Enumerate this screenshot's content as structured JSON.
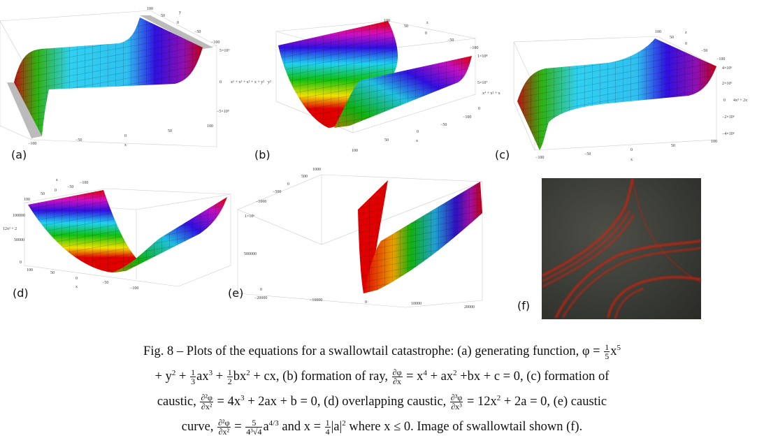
{
  "panels": {
    "a": {
      "label": "(a)",
      "zlabel": "x⁵ + x³ + x² + x + y²",
      "y_axis_label": "y",
      "x_axis_label": "x",
      "y_ticks": [
        "100",
        "50",
        "0",
        "−50",
        "−100"
      ],
      "z_ticks": [
        "5×10⁹",
        "0",
        "−5×10⁹"
      ],
      "x_ticks": [
        "−100",
        "−50",
        "0",
        "50",
        "100"
      ]
    },
    "b": {
      "label": "(b)",
      "zlabel": "x⁴ + x² + x",
      "side_label": "y²",
      "x_axis_label": "x",
      "z_label2": "z",
      "top_ticks": [
        "100",
        "50",
        "0",
        "−50",
        "−100"
      ],
      "z_ticks": [
        "1×10⁸",
        "5×10⁷",
        "0"
      ],
      "front_ticks": [
        "−100",
        "−50",
        "0",
        "50",
        "100"
      ]
    },
    "c": {
      "label": "(c)",
      "zlabel": "4x³ + 2x",
      "y_axis_label": "z",
      "x_axis_label": "x",
      "y_ticks": [
        "100",
        "50",
        "0",
        "−50",
        "−100"
      ],
      "z_ticks": [
        "4×10⁶",
        "2×10⁶",
        "0",
        "−2×10⁶",
        "−4×10⁶"
      ],
      "x_ticks": [
        "−100",
        "−50",
        "0",
        "50",
        "100"
      ]
    },
    "d": {
      "label": "(d)",
      "zlabel": "12x² + 2",
      "x_axis_label": "x",
      "y_axis_label": "z",
      "top_ticks": [
        "100",
        "50",
        "0",
        "−50",
        "−100"
      ],
      "z_ticks": [
        "100000",
        "50000",
        "0"
      ],
      "front_ticks": [
        "100",
        "50",
        "0",
        "−50",
        "−100"
      ]
    },
    "e": {
      "label": "(e)",
      "top_ticks": [
        "1000",
        "500",
        "0",
        "−500",
        "−1000"
      ],
      "z_ticks": [
        "1×10⁶",
        "500000",
        "0"
      ],
      "x_ticks": [
        "−20000",
        "−10000",
        "0",
        "10000",
        "20000"
      ]
    },
    "f": {
      "label": "(f)"
    }
  },
  "caption": {
    "lines": [
      [
        {
          "t": "Fig. 8 – Plots of the equations for a swallowtail catastrophe: (a) generating function, φ = "
        },
        {
          "frac": [
            "1",
            "5"
          ]
        },
        {
          "t": "x"
        },
        {
          "sup": "5"
        }
      ],
      [
        {
          "t": "+ y"
        },
        {
          "sup": "2"
        },
        {
          "t": " + "
        },
        {
          "frac": [
            "1",
            "3"
          ]
        },
        {
          "t": "ax"
        },
        {
          "sup": "3"
        },
        {
          "t": " + "
        },
        {
          "frac": [
            "1",
            "2"
          ]
        },
        {
          "t": "bx"
        },
        {
          "sup": "2"
        },
        {
          "t": " + cx, (b) formation of ray, "
        },
        {
          "frac": [
            "∂φ",
            "∂x"
          ]
        },
        {
          "t": " = x"
        },
        {
          "sup": "4"
        },
        {
          "t": " + ax"
        },
        {
          "sup": "2"
        },
        {
          "t": " +bx + c = 0, (c) formation of"
        }
      ],
      [
        {
          "t": "caustic, "
        },
        {
          "frac": [
            "∂²φ",
            "∂x²"
          ]
        },
        {
          "t": " = 4x"
        },
        {
          "sup": "3"
        },
        {
          "t": " + 2ax + b = 0, (d) overlapping caustic, "
        },
        {
          "frac": [
            "∂³φ",
            "∂x³"
          ]
        },
        {
          "t": " = 12x"
        },
        {
          "sup": "2"
        },
        {
          "t": " + 2a = 0, (e) caustic"
        }
      ],
      [
        {
          "t": "curve, "
        },
        {
          "frac": [
            "∂²φ",
            "∂x²"
          ]
        },
        {
          "t": " = "
        },
        {
          "frac": [
            "5",
            "4³√4"
          ]
        },
        {
          "t": "a"
        },
        {
          "sup": "4/3"
        },
        {
          "t": " and x = "
        },
        {
          "frac": [
            "1",
            "4"
          ]
        },
        {
          "t": "|a|"
        },
        {
          "sup": "2"
        },
        {
          "t": " where x ≤ 0. Image of swallowtail shown (f)."
        }
      ]
    ]
  },
  "colors": {
    "red": "#e00000",
    "green": "#10c010",
    "cyan": "#20d8f0",
    "blue": "#3010e0",
    "magenta": "#d010c0"
  }
}
